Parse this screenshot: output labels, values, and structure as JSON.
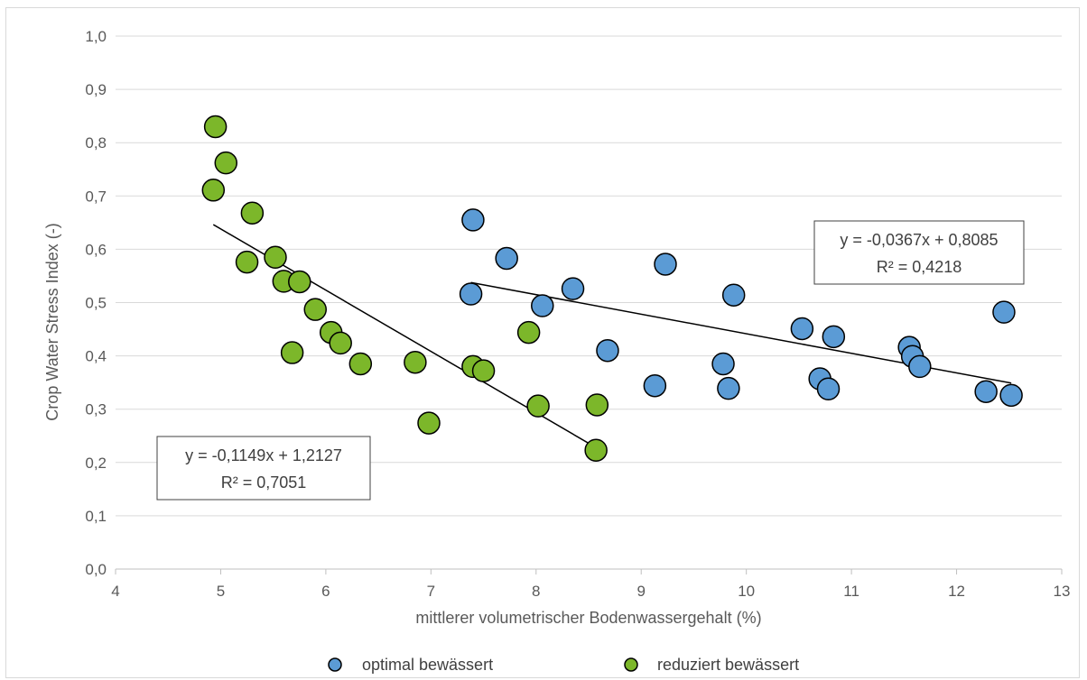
{
  "chart_data": {
    "type": "scatter",
    "xlabel": "mittlerer volumetrischer Bodenwassergehalt (%)",
    "ylabel": "Crop Water Stress Index (-)",
    "xlim": [
      4,
      13
    ],
    "ylim": [
      0.0,
      1.0
    ],
    "x_ticks": [
      "4",
      "5",
      "6",
      "7",
      "8",
      "9",
      "10",
      "11",
      "12",
      "13"
    ],
    "y_ticks": [
      "0,0",
      "0,1",
      "0,2",
      "0,3",
      "0,4",
      "0,5",
      "0,6",
      "0,7",
      "0,8",
      "0,9",
      "1,0"
    ],
    "grid": "horizontal",
    "legend_position": "bottom",
    "series": [
      {
        "name": "optimal bewässert",
        "color": "#5b9bd5",
        "points": [
          [
            7.4,
            0.655
          ],
          [
            7.38,
            0.516
          ],
          [
            7.72,
            0.583
          ],
          [
            8.06,
            0.494
          ],
          [
            8.35,
            0.526
          ],
          [
            8.68,
            0.41
          ],
          [
            9.13,
            0.344
          ],
          [
            9.23,
            0.572
          ],
          [
            9.78,
            0.385
          ],
          [
            9.83,
            0.339
          ],
          [
            9.88,
            0.514
          ],
          [
            10.53,
            0.451
          ],
          [
            10.7,
            0.357
          ],
          [
            10.78,
            0.338
          ],
          [
            10.83,
            0.436
          ],
          [
            11.55,
            0.416
          ],
          [
            11.58,
            0.399
          ],
          [
            11.65,
            0.38
          ],
          [
            12.28,
            0.333
          ],
          [
            12.45,
            0.482
          ],
          [
            12.52,
            0.326
          ]
        ],
        "trendline": {
          "slope": -0.0367,
          "intercept": 0.8085,
          "x_range": [
            7.38,
            12.52
          ]
        },
        "equation": "y = -0,0367x + 0,8085",
        "r2": "R² = 0,4218"
      },
      {
        "name": "reduziert bewässert",
        "color": "#7cb72a",
        "points": [
          [
            4.95,
            0.83
          ],
          [
            5.05,
            0.762
          ],
          [
            4.93,
            0.711
          ],
          [
            5.3,
            0.668
          ],
          [
            5.25,
            0.576
          ],
          [
            5.52,
            0.585
          ],
          [
            5.6,
            0.54
          ],
          [
            5.75,
            0.539
          ],
          [
            5.9,
            0.487
          ],
          [
            6.05,
            0.444
          ],
          [
            6.14,
            0.424
          ],
          [
            5.68,
            0.406
          ],
          [
            6.33,
            0.385
          ],
          [
            6.85,
            0.388
          ],
          [
            6.98,
            0.274
          ],
          [
            7.4,
            0.38
          ],
          [
            7.5,
            0.372
          ],
          [
            7.93,
            0.444
          ],
          [
            8.02,
            0.306
          ],
          [
            8.58,
            0.308
          ],
          [
            8.57,
            0.223
          ]
        ],
        "trendline": {
          "slope": -0.1149,
          "intercept": 1.2127,
          "x_range": [
            4.93,
            8.58
          ]
        },
        "equation": "y = -0,1149x + 1,2127",
        "r2": "R² = 0,7051"
      }
    ]
  }
}
